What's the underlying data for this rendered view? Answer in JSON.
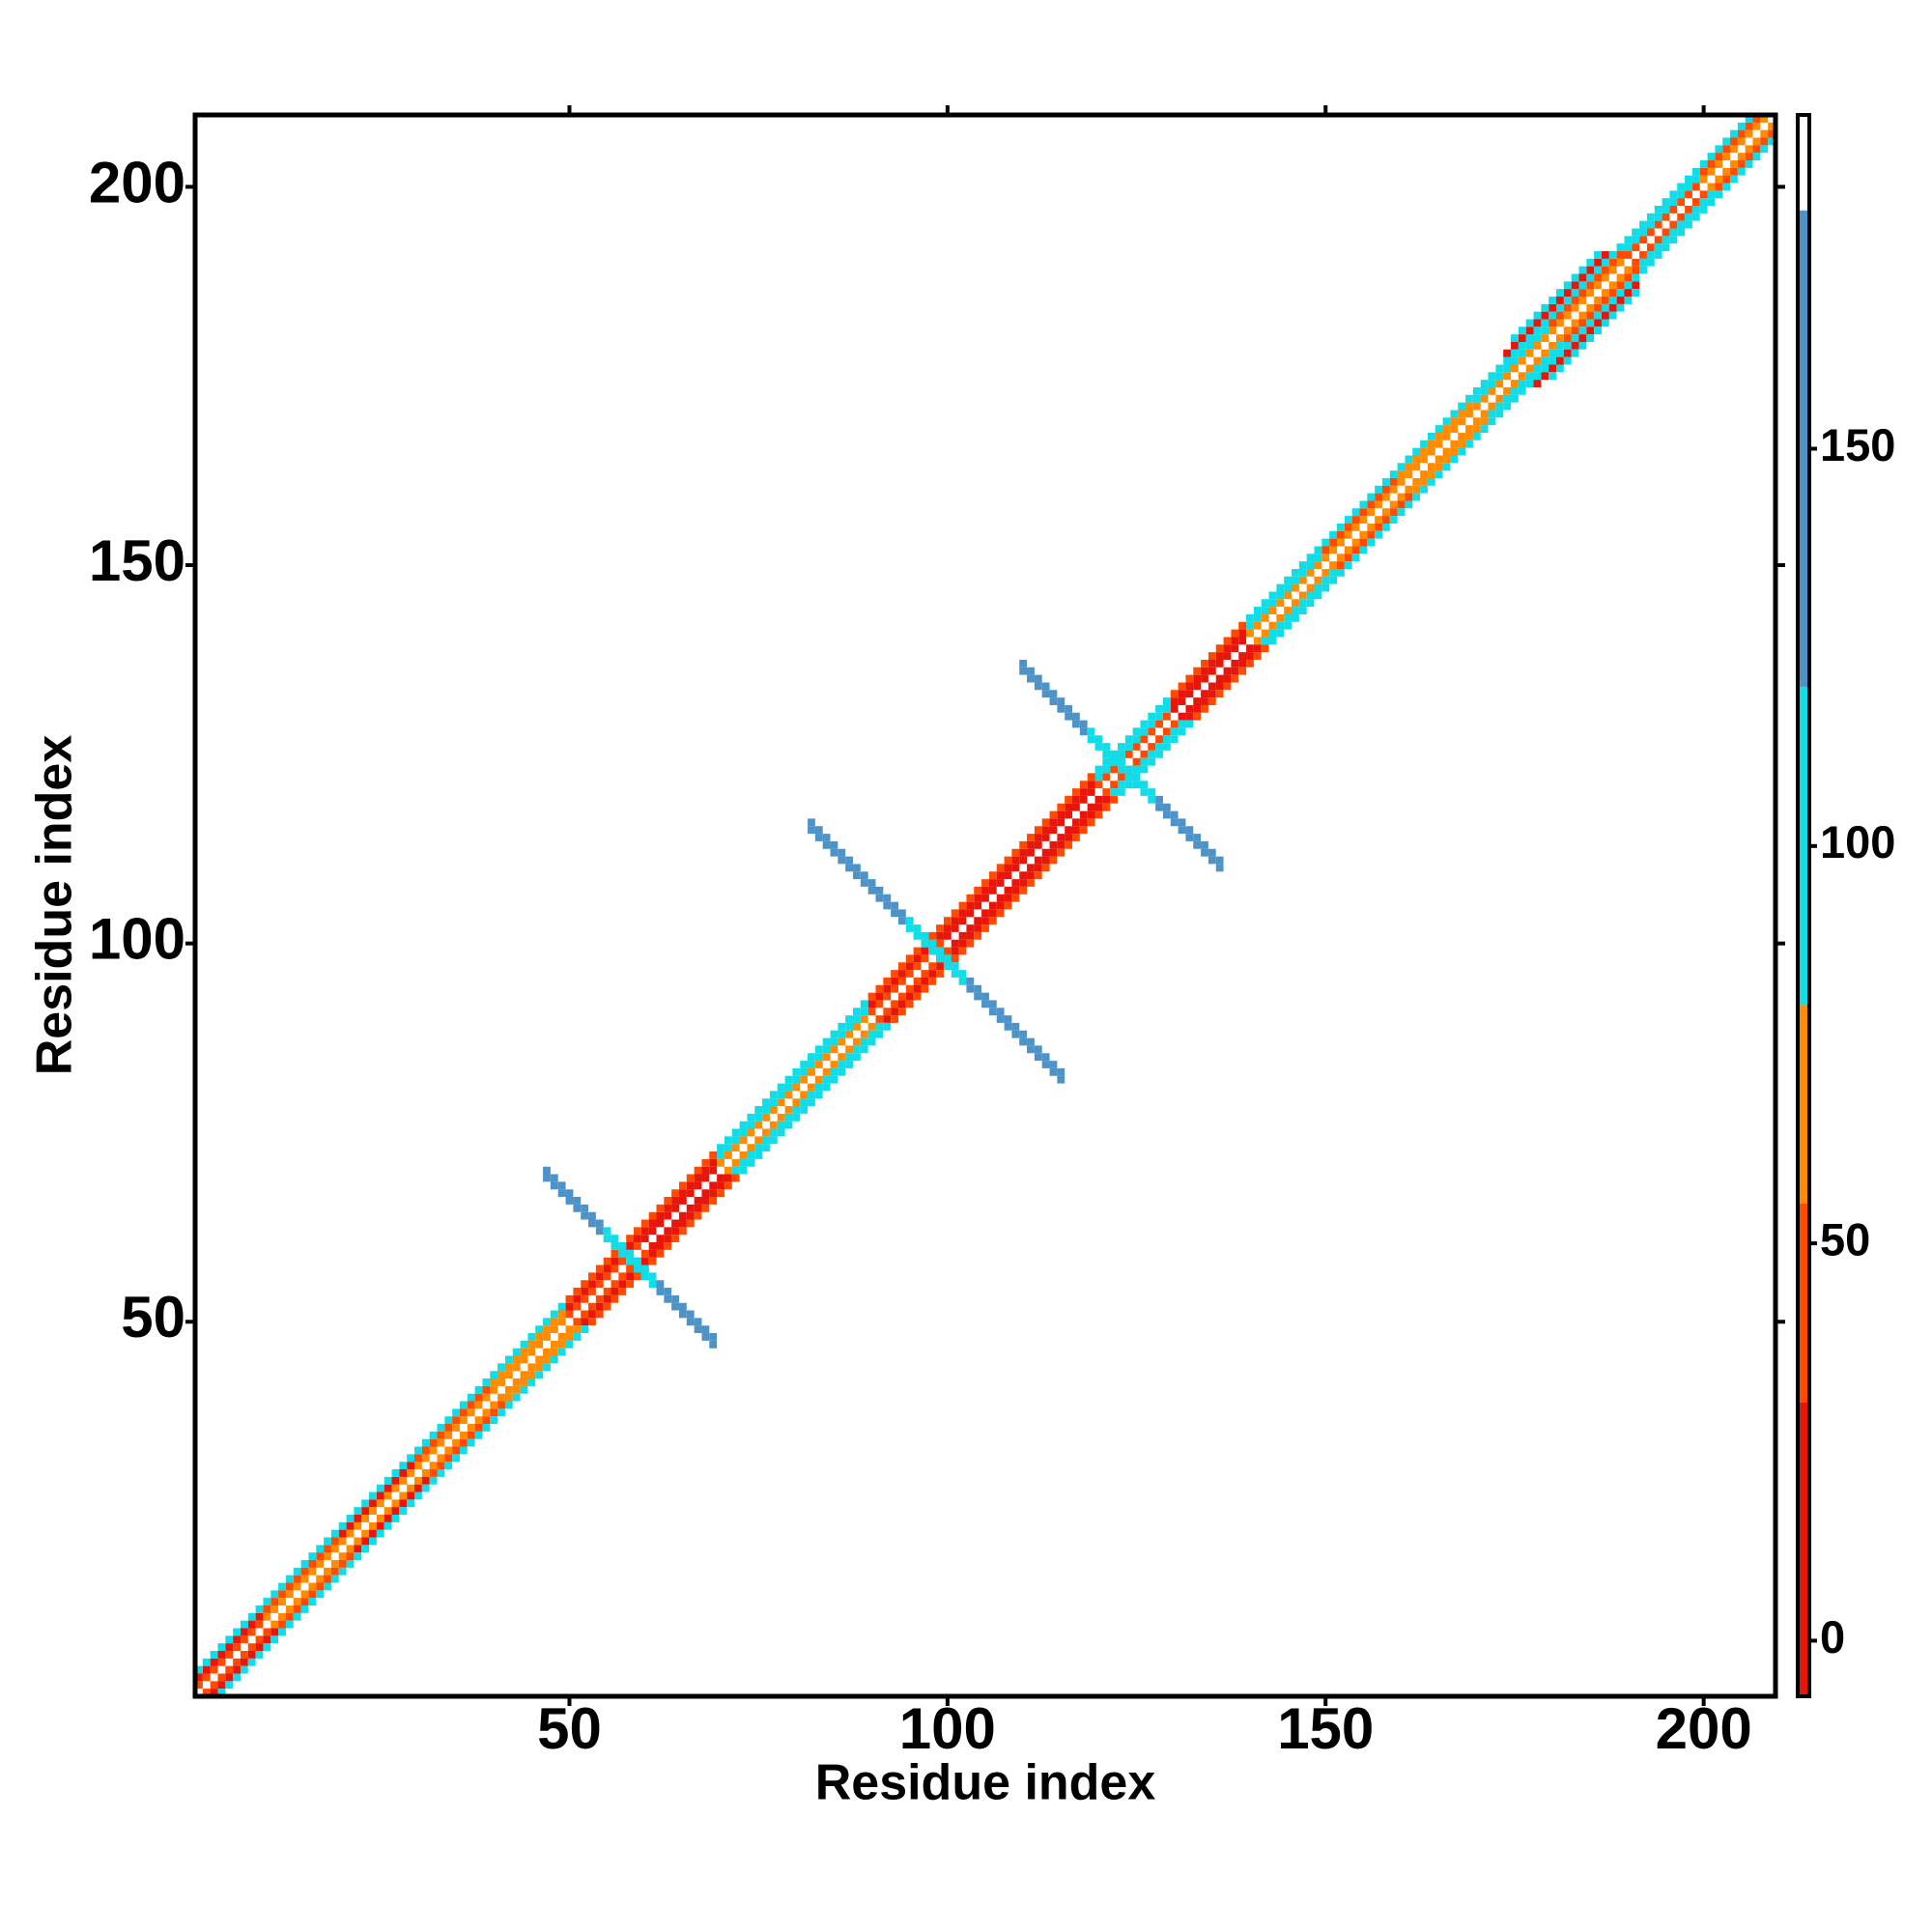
{
  "chart_data": {
    "type": "heatmap",
    "x_label": "Residue index",
    "y_label": "Residue index",
    "xlim": [
      0.5,
      209.5
    ],
    "ylim": [
      0.5,
      209.5
    ],
    "xticks": [
      50,
      100,
      150,
      200
    ],
    "yticks": [
      50,
      100,
      150,
      200
    ],
    "colorbar": {
      "bounds": [
        -7,
        30,
        55,
        80,
        120,
        180,
        192
      ],
      "colors": [
        "#e8150b",
        "#ff4a00",
        "#ff8c00",
        "#10dde8",
        "#4d93c8",
        "#ffffff"
      ],
      "ticks": [
        0,
        50,
        100,
        150
      ]
    },
    "diagonal_bands": {
      "start": [
        1,
        1,
        10,
        20,
        30,
        40,
        50,
        60,
        70,
        80,
        90,
        100,
        110,
        120,
        130,
        140,
        150,
        160,
        170,
        180,
        190,
        200,
        1,
        10,
        20,
        30,
        40,
        50,
        60,
        70,
        80,
        90,
        100,
        110,
        120,
        130,
        140,
        150,
        160,
        170,
        180,
        190,
        200,
        1,
        10,
        20,
        30,
        40,
        50,
        60,
        70,
        80,
        90,
        100,
        110,
        120,
        130,
        140,
        150,
        160,
        170,
        180,
        190,
        200,
        174,
        175
      ],
      "end": [
        209,
        9,
        19,
        29,
        39,
        49,
        59,
        69,
        79,
        89,
        99,
        109,
        119,
        129,
        139,
        149,
        159,
        169,
        179,
        189,
        199,
        208,
        9,
        19,
        29,
        39,
        49,
        59,
        69,
        79,
        89,
        99,
        109,
        119,
        129,
        139,
        149,
        159,
        169,
        179,
        189,
        199,
        207,
        9,
        19,
        29,
        39,
        49,
        59,
        69,
        79,
        89,
        99,
        109,
        119,
        129,
        139,
        149,
        159,
        169,
        179,
        189,
        199,
        206,
        187,
        186
      ],
      "offset": [
        0,
        1,
        1,
        1,
        1,
        1,
        1,
        1,
        1,
        1,
        1,
        1,
        1,
        1,
        1,
        1,
        1,
        1,
        1,
        1,
        1,
        1,
        2,
        2,
        2,
        2,
        2,
        2,
        2,
        2,
        2,
        2,
        2,
        2,
        2,
        2,
        2,
        2,
        2,
        2,
        2,
        2,
        2,
        3,
        3,
        3,
        3,
        3,
        3,
        3,
        3,
        3,
        3,
        3,
        3,
        3,
        3,
        3,
        3,
        3,
        3,
        3,
        3,
        3,
        4,
        5
      ],
      "values": [
        185,
        40,
        60,
        60,
        60,
        65,
        40,
        10,
        60,
        65,
        40,
        10,
        10,
        40,
        10,
        60,
        65,
        65,
        60,
        60,
        40,
        60,
        10,
        40,
        10,
        40,
        60,
        10,
        10,
        90,
        90,
        10,
        10,
        10,
        90,
        10,
        90,
        40,
        60,
        90,
        40,
        90,
        40,
        90,
        90,
        90,
        90,
        90,
        40,
        40,
        90,
        90,
        40,
        40,
        40,
        90,
        40,
        90,
        90,
        90,
        90,
        90,
        90,
        90,
        10,
        90
      ]
    },
    "antidiagonal_bands": {
      "start": [
        47,
        55,
        62,
        47,
        55,
        62,
        82,
        95,
        103,
        82,
        95,
        103,
        110,
        119,
        128,
        110,
        119,
        128
      ],
      "end": [
        54,
        61,
        69,
        54,
        61,
        69,
        94,
        102,
        115,
        94,
        102,
        115,
        118,
        127,
        136,
        118,
        127,
        136
      ],
      "sum": [
        116,
        116,
        116,
        117,
        117,
        117,
        197,
        197,
        197,
        198,
        198,
        198,
        246,
        246,
        246,
        247,
        247,
        247
      ],
      "values": [
        140,
        95,
        140,
        140,
        95,
        140,
        140,
        95,
        140,
        140,
        95,
        140,
        140,
        95,
        140,
        140,
        95,
        140
      ]
    }
  }
}
